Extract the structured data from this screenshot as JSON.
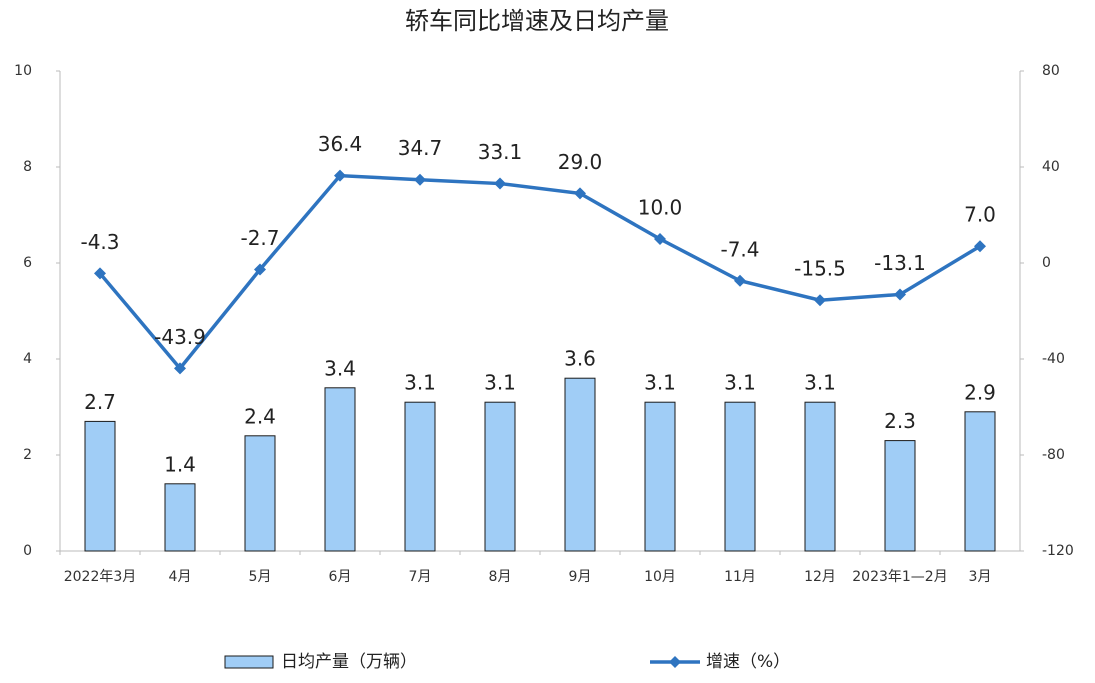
{
  "chart_data": {
    "type": "combo",
    "title": "轿车同比增速及日均产量",
    "categories": [
      "2022年3月",
      "4月",
      "5月",
      "6月",
      "7月",
      "8月",
      "9月",
      "10月",
      "11月",
      "12月",
      "2023年1—2月",
      "3月"
    ],
    "series": [
      {
        "name": "日均产量（万辆）",
        "type": "bar",
        "color": "#a0cdf6",
        "values": [
          2.7,
          1.4,
          2.4,
          3.4,
          3.1,
          3.1,
          3.6,
          3.1,
          3.1,
          3.1,
          2.3,
          2.9
        ]
      },
      {
        "name": "增速（%）",
        "type": "line",
        "axis": "y2",
        "color": "#2e74c0",
        "values": [
          -4.3,
          -43.9,
          -2.7,
          36.4,
          34.7,
          33.1,
          29,
          10,
          -7.4,
          -15.5,
          -13.1,
          7
        ],
        "value_labels": [
          "-4.3",
          "-43.9",
          "-2.7",
          "36.4",
          "34.7",
          "33.1",
          "29.0",
          "10.0",
          "-7.4",
          "-15.5",
          "-13.1",
          "7.0"
        ]
      }
    ],
    "ylim": [
      0,
      10
    ],
    "yticks": [
      0,
      2,
      4,
      6,
      8,
      10
    ],
    "y2lim": [
      -120,
      80
    ],
    "y2ticks": [
      -120,
      -80,
      -40,
      0,
      40,
      80
    ]
  }
}
